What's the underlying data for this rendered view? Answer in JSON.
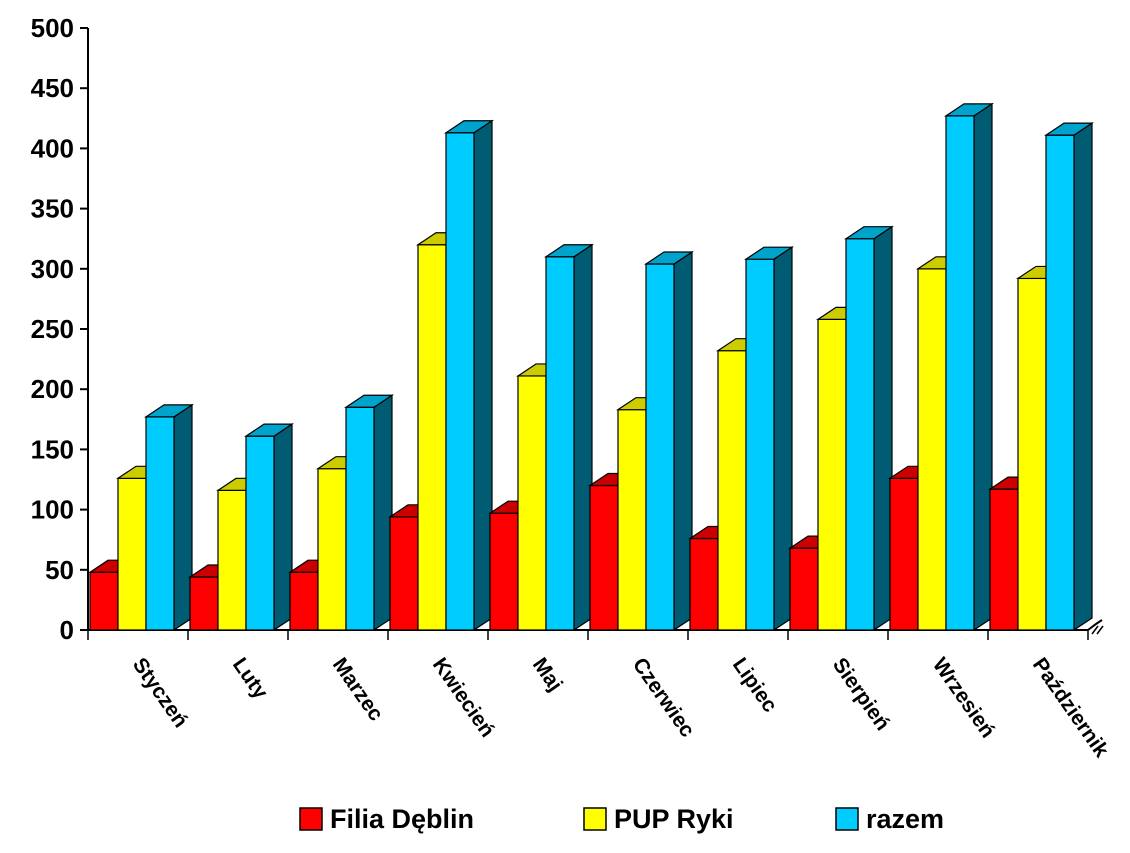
{
  "chart_data": {
    "type": "bar",
    "categories": [
      "Styczeń",
      "Luty",
      "Marzec",
      "Kwiecień",
      "Maj",
      "Czerwiec",
      "Lipiec",
      "Sierpień",
      "Wrzesień",
      "Październik"
    ],
    "series": [
      {
        "name": "Filia Dęblin",
        "color": "#ff0000",
        "values": [
          48,
          44,
          48,
          94,
          97,
          120,
          76,
          68,
          126,
          117
        ]
      },
      {
        "name": "PUP Ryki",
        "color": "#ffff00",
        "values": [
          126,
          116,
          134,
          320,
          211,
          183,
          232,
          258,
          300,
          292
        ]
      },
      {
        "name": "razem",
        "color": "#00ccff",
        "values": [
          177,
          161,
          185,
          413,
          310,
          304,
          308,
          325,
          427,
          411
        ]
      }
    ],
    "yticks": [
      "0",
      "50",
      "100",
      "150",
      "200",
      "250",
      "300",
      "350",
      "400",
      "450",
      "500"
    ],
    "ylim": [
      0,
      500
    ],
    "title": "",
    "xlabel": "",
    "ylabel": "",
    "grid": false,
    "legend_position": "bottom",
    "three_d": true
  }
}
